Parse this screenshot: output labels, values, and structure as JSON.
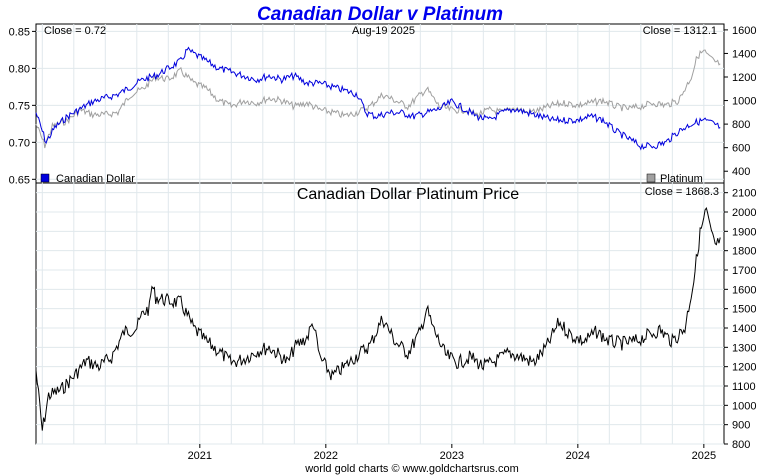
{
  "chart_data": {
    "type": "line",
    "title": "Canadian Dollar v Platinum",
    "header_date": "Aug-19  2025",
    "footer": "world gold charts © www.goldchartsrus.com",
    "x_tick_labels": [
      "2021",
      "2022",
      "2023",
      "2024",
      "2025"
    ],
    "colors": {
      "title": "#0000ee",
      "cad": "#0000dd",
      "platinum": "#a0a0a0",
      "cad_in_plat": "#000000",
      "grid": "#e0e8ec"
    },
    "panels": [
      {
        "name": "top",
        "left_axis": {
          "ylim": [
            0.645,
            0.86
          ],
          "ticks": [
            "0.65",
            "0.70",
            "0.75",
            "0.80",
            "0.85"
          ]
        },
        "right_axis": {
          "ylim": [
            300,
            1650
          ],
          "ticks": [
            "400",
            "600",
            "800",
            "1000",
            "1200",
            "1400",
            "1600"
          ]
        },
        "left_label": "Close = 0.72",
        "right_label": "Close = 1312.1",
        "series": [
          {
            "name": "Canadian Dollar",
            "axis": "left",
            "points": [
              [
                2020.2,
                0.74
              ],
              [
                2020.28,
                0.7
              ],
              [
                2020.35,
                0.72
              ],
              [
                2020.45,
                0.735
              ],
              [
                2020.55,
                0.745
              ],
              [
                2020.65,
                0.755
              ],
              [
                2020.75,
                0.76
              ],
              [
                2020.85,
                0.765
              ],
              [
                2020.95,
                0.775
              ],
              [
                2021.05,
                0.785
              ],
              [
                2021.15,
                0.79
              ],
              [
                2021.25,
                0.8
              ],
              [
                2021.35,
                0.81
              ],
              [
                2021.4,
                0.825
              ],
              [
                2021.45,
                0.82
              ],
              [
                2021.55,
                0.81
              ],
              [
                2021.65,
                0.8
              ],
              [
                2021.75,
                0.795
              ],
              [
                2021.85,
                0.79
              ],
              [
                2021.95,
                0.785
              ],
              [
                2022.05,
                0.79
              ],
              [
                2022.15,
                0.785
              ],
              [
                2022.25,
                0.79
              ],
              [
                2022.35,
                0.78
              ],
              [
                2022.45,
                0.78
              ],
              [
                2022.55,
                0.775
              ],
              [
                2022.65,
                0.77
              ],
              [
                2022.75,
                0.765
              ],
              [
                2022.82,
                0.74
              ],
              [
                2022.9,
                0.735
              ],
              [
                2023.0,
                0.74
              ],
              [
                2023.1,
                0.74
              ],
              [
                2023.2,
                0.735
              ],
              [
                2023.3,
                0.74
              ],
              [
                2023.4,
                0.745
              ],
              [
                2023.5,
                0.755
              ],
              [
                2023.6,
                0.745
              ],
              [
                2023.7,
                0.735
              ],
              [
                2023.8,
                0.73
              ],
              [
                2023.9,
                0.74
              ],
              [
                2024.0,
                0.745
              ],
              [
                2024.1,
                0.74
              ],
              [
                2024.2,
                0.735
              ],
              [
                2024.3,
                0.73
              ],
              [
                2024.4,
                0.73
              ],
              [
                2024.5,
                0.73
              ],
              [
                2024.6,
                0.735
              ],
              [
                2024.7,
                0.73
              ],
              [
                2024.8,
                0.715
              ],
              [
                2024.9,
                0.705
              ],
              [
                2025.0,
                0.695
              ],
              [
                2025.1,
                0.695
              ],
              [
                2025.2,
                0.7
              ],
              [
                2025.3,
                0.715
              ],
              [
                2025.4,
                0.725
              ],
              [
                2025.5,
                0.73
              ],
              [
                2025.58,
                0.725
              ],
              [
                2025.63,
                0.72
              ]
            ]
          },
          {
            "name": "Platinum",
            "axis": "right",
            "points": [
              [
                2020.2,
                800
              ],
              [
                2020.27,
                620
              ],
              [
                2020.33,
                780
              ],
              [
                2020.45,
                830
              ],
              [
                2020.55,
                920
              ],
              [
                2020.65,
                880
              ],
              [
                2020.75,
                880
              ],
              [
                2020.85,
                900
              ],
              [
                2020.95,
                1050
              ],
              [
                2021.05,
                1100
              ],
              [
                2021.15,
                1200
              ],
              [
                2021.25,
                1180
              ],
              [
                2021.35,
                1250
              ],
              [
                2021.45,
                1150
              ],
              [
                2021.55,
                1100
              ],
              [
                2021.65,
                1000
              ],
              [
                2021.75,
                950
              ],
              [
                2021.85,
                1000
              ],
              [
                2021.95,
                980
              ],
              [
                2022.05,
                1020
              ],
              [
                2022.15,
                1000
              ],
              [
                2022.25,
                950
              ],
              [
                2022.35,
                980
              ],
              [
                2022.45,
                920
              ],
              [
                2022.55,
                900
              ],
              [
                2022.65,
                870
              ],
              [
                2022.75,
                900
              ],
              [
                2022.85,
                950
              ],
              [
                2022.95,
                1050
              ],
              [
                2023.05,
                1000
              ],
              [
                2023.15,
                950
              ],
              [
                2023.25,
                1050
              ],
              [
                2023.3,
                1100
              ],
              [
                2023.4,
                950
              ],
              [
                2023.5,
                920
              ],
              [
                2023.6,
                920
              ],
              [
                2023.7,
                880
              ],
              [
                2023.8,
                920
              ],
              [
                2023.9,
                900
              ],
              [
                2024.0,
                940
              ],
              [
                2024.1,
                900
              ],
              [
                2024.2,
                920
              ],
              [
                2024.3,
                960
              ],
              [
                2024.4,
                980
              ],
              [
                2024.5,
                960
              ],
              [
                2024.6,
                980
              ],
              [
                2024.7,
                1000
              ],
              [
                2024.8,
                950
              ],
              [
                2024.9,
                930
              ],
              [
                2025.0,
                950
              ],
              [
                2025.1,
                980
              ],
              [
                2025.2,
                960
              ],
              [
                2025.3,
                1000
              ],
              [
                2025.4,
                1200
              ],
              [
                2025.45,
                1380
              ],
              [
                2025.5,
                1420
              ],
              [
                2025.55,
                1360
              ],
              [
                2025.6,
                1320
              ],
              [
                2025.63,
                1312
              ]
            ]
          }
        ],
        "legend": [
          "Canadian Dollar",
          "Platinum"
        ]
      },
      {
        "name": "bottom",
        "subtitle": "Canadian Dollar Platinum Price",
        "right_label": "Close = 1868.3",
        "right_axis": {
          "ylim": [
            800,
            2150
          ],
          "ticks": [
            "800",
            "900",
            "1000",
            "1100",
            "1200",
            "1300",
            "1400",
            "1500",
            "1600",
            "1700",
            "1800",
            "1900",
            "2000",
            "2100"
          ]
        },
        "series": [
          {
            "name": "Canadian Dollar Platinum Price",
            "axis": "right",
            "points": [
              [
                2020.2,
                1180
              ],
              [
                2020.25,
                870
              ],
              [
                2020.3,
                1050
              ],
              [
                2020.4,
                1080
              ],
              [
                2020.5,
                1150
              ],
              [
                2020.6,
                1230
              ],
              [
                2020.7,
                1200
              ],
              [
                2020.8,
                1250
              ],
              [
                2020.9,
                1380
              ],
              [
                2021.0,
                1400
              ],
              [
                2021.05,
                1480
              ],
              [
                2021.1,
                1500
              ],
              [
                2021.12,
                1620
              ],
              [
                2021.15,
                1560
              ],
              [
                2021.25,
                1540
              ],
              [
                2021.35,
                1530
              ],
              [
                2021.45,
                1400
              ],
              [
                2021.55,
                1330
              ],
              [
                2021.65,
                1280
              ],
              [
                2021.75,
                1220
              ],
              [
                2021.85,
                1240
              ],
              [
                2021.95,
                1280
              ],
              [
                2022.05,
                1300
              ],
              [
                2022.15,
                1250
              ],
              [
                2022.2,
                1220
              ],
              [
                2022.25,
                1300
              ],
              [
                2022.35,
                1350
              ],
              [
                2022.4,
                1430
              ],
              [
                2022.45,
                1250
              ],
              [
                2022.55,
                1150
              ],
              [
                2022.65,
                1200
              ],
              [
                2022.75,
                1260
              ],
              [
                2022.85,
                1310
              ],
              [
                2022.95,
                1450
              ],
              [
                2023.05,
                1330
              ],
              [
                2023.15,
                1270
              ],
              [
                2023.25,
                1380
              ],
              [
                2023.3,
                1500
              ],
              [
                2023.35,
                1400
              ],
              [
                2023.45,
                1260
              ],
              [
                2023.55,
                1220
              ],
              [
                2023.65,
                1250
              ],
              [
                2023.75,
                1200
              ],
              [
                2023.85,
                1230
              ],
              [
                2023.95,
                1270
              ],
              [
                2024.05,
                1250
              ],
              [
                2024.15,
                1220
              ],
              [
                2024.25,
                1300
              ],
              [
                2024.35,
                1430
              ],
              [
                2024.45,
                1360
              ],
              [
                2024.55,
                1330
              ],
              [
                2024.65,
                1380
              ],
              [
                2024.75,
                1330
              ],
              [
                2024.85,
                1320
              ],
              [
                2024.95,
                1330
              ],
              [
                2025.05,
                1360
              ],
              [
                2025.15,
                1390
              ],
              [
                2025.25,
                1330
              ],
              [
                2025.35,
                1400
              ],
              [
                2025.42,
                1650
              ],
              [
                2025.47,
                1890
              ],
              [
                2025.52,
                2010
              ],
              [
                2025.56,
                1880
              ],
              [
                2025.6,
                1820
              ],
              [
                2025.63,
                1868
              ]
            ]
          }
        ]
      }
    ]
  }
}
